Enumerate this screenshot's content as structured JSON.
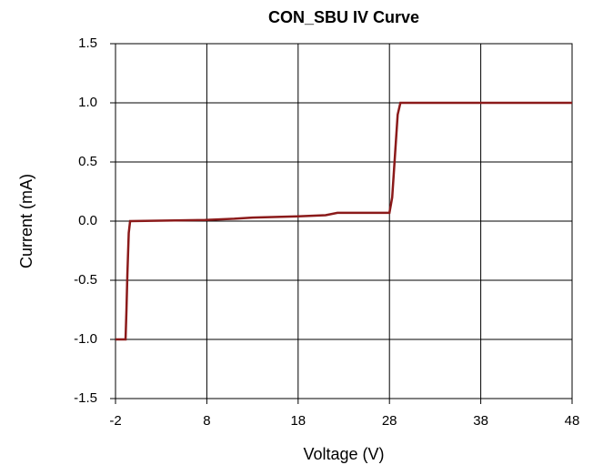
{
  "chart_data": {
    "type": "line",
    "title": "CON_SBU IV Curve",
    "xlabel": "Voltage (V)",
    "ylabel": "Current (mA)",
    "x": [
      -2,
      -0.9,
      -0.8,
      -0.7,
      -0.55,
      -0.4,
      7.8,
      11,
      13,
      18,
      21,
      22.3,
      28,
      28.3,
      28.6,
      28.9,
      29.2,
      48
    ],
    "series": [
      {
        "name": "CON_SBU",
        "color": "#8b1a1a",
        "values": [
          -1.0,
          -1.0,
          -0.75,
          -0.45,
          -0.1,
          0.0,
          0.01,
          0.02,
          0.03,
          0.04,
          0.05,
          0.07,
          0.07,
          0.2,
          0.55,
          0.9,
          1.0,
          1.0
        ]
      }
    ],
    "xlim": [
      -2,
      48
    ],
    "xticks": [
      -2,
      8,
      18,
      28,
      38,
      48
    ],
    "ylim": [
      -1.5,
      1.5
    ],
    "yticks": [
      -1.5,
      {
        "value": -1,
        "label": "-1.0"
      },
      -0.5,
      {
        "value": 0,
        "label": "0.0"
      },
      0.5,
      {
        "value": 1,
        "label": "1.0"
      },
      1.5
    ],
    "grid": true
  }
}
